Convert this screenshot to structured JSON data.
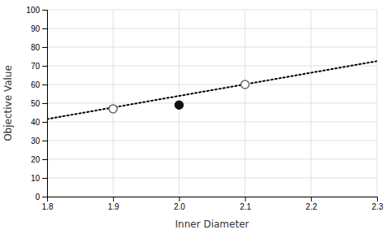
{
  "chart_data": {
    "type": "line",
    "xlabel": "Inner Diameter",
    "ylabel": "Objective Value",
    "series": [
      {
        "type": "line",
        "x": [
          1.8,
          2.3
        ],
        "values": [
          41.5,
          72.5
        ],
        "color": "#000000",
        "line_style": "dotted"
      },
      {
        "type": "scatter",
        "x": [
          1.9,
          2.1
        ],
        "values": [
          47,
          60
        ],
        "color": "#666666",
        "marker": "open-circle"
      },
      {
        "type": "scatter",
        "x": [
          2.0
        ],
        "values": [
          49
        ],
        "color": "#111111",
        "marker": "circle"
      }
    ],
    "xlim": [
      1.8,
      2.3
    ],
    "ylim": [
      0,
      100
    ],
    "xticks": [
      1.8,
      1.9,
      {
        "value": 2.0,
        "label": "2.0"
      },
      2.1,
      2.2,
      2.3
    ],
    "yticks": [
      0,
      10,
      20,
      30,
      40,
      50,
      60,
      70,
      80,
      90,
      100
    ],
    "grid": true
  }
}
